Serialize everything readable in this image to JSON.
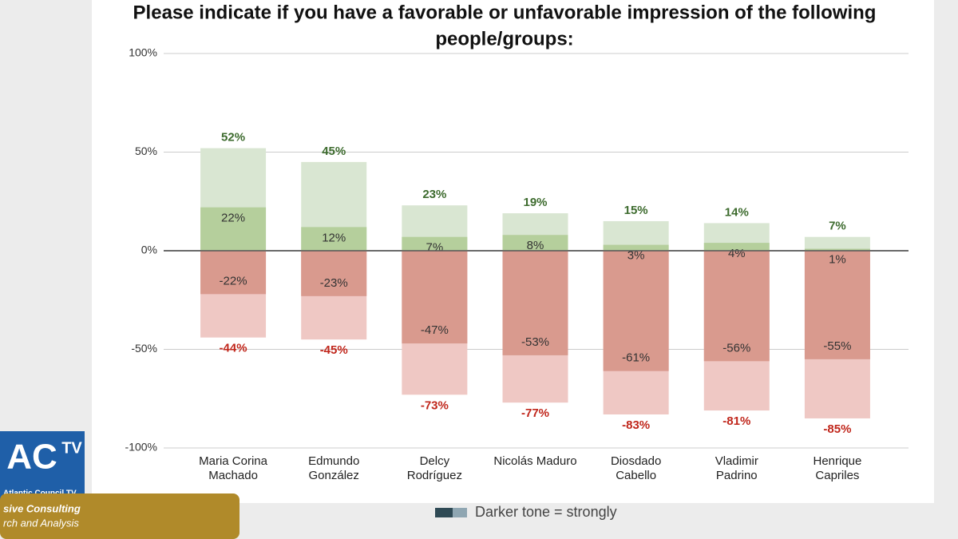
{
  "chart_data": {
    "type": "bar",
    "title": [
      "Please indicate if you have a favorable or unfavorable impression of the following",
      "people/groups:"
    ],
    "categories": [
      [
        "Maria Corina",
        "Machado"
      ],
      [
        "Edmundo",
        "González"
      ],
      [
        "Delcy",
        "Rodríguez"
      ],
      [
        "Nicolás Maduro"
      ],
      [
        "Diosdado",
        "Cabello"
      ],
      [
        "Vladimir",
        "Padrino"
      ],
      [
        "Henrique",
        "Capriles"
      ]
    ],
    "series": [
      {
        "color": "#d9e6d2",
        "values": [
          52,
          45,
          23,
          19,
          15,
          14,
          7
        ],
        "value_labels": [
          "52%",
          "45%",
          "23%",
          "19%",
          "15%",
          "14%",
          "7%"
        ]
      },
      {
        "color": "#b5cf9c",
        "values": [
          22,
          12,
          7,
          8,
          3,
          4,
          1
        ],
        "value_labels": [
          "22%",
          "12%",
          "7%",
          "8%",
          "3%",
          "4%",
          "1%"
        ]
      },
      {
        "color": "#efc8c4",
        "values": [
          -44,
          -45,
          -73,
          -77,
          -83,
          -81,
          -85
        ],
        "value_labels": [
          "-44%",
          "-45%",
          "-73%",
          "-77%",
          "-83%",
          "-81%",
          "-85%"
        ]
      },
      {
        "color": "#d99a8e",
        "values": [
          -22,
          -23,
          -47,
          -53,
          -61,
          -56,
          -55
        ],
        "value_labels": [
          "-22%",
          "-23%",
          "-47%",
          "-53%",
          "-61%",
          "-56%",
          "-55%"
        ]
      }
    ],
    "ylim": [
      -100,
      100
    ],
    "yticks": [
      {
        "value": -100,
        "label": "-100%"
      },
      {
        "value": -50,
        "label": "-50%"
      },
      {
        "value": 0,
        "label": "0%"
      },
      {
        "value": 50,
        "label": "50%"
      },
      {
        "value": 100,
        "label": "100%"
      }
    ],
    "grid": true,
    "legend_note": "Darker tone = strongly"
  },
  "overlay": {
    "logo": "AC",
    "logo_tv": "TV",
    "channel": "Atlantic Council TV",
    "banner": [
      "sive Consulting",
      "rch and Analysis"
    ]
  }
}
